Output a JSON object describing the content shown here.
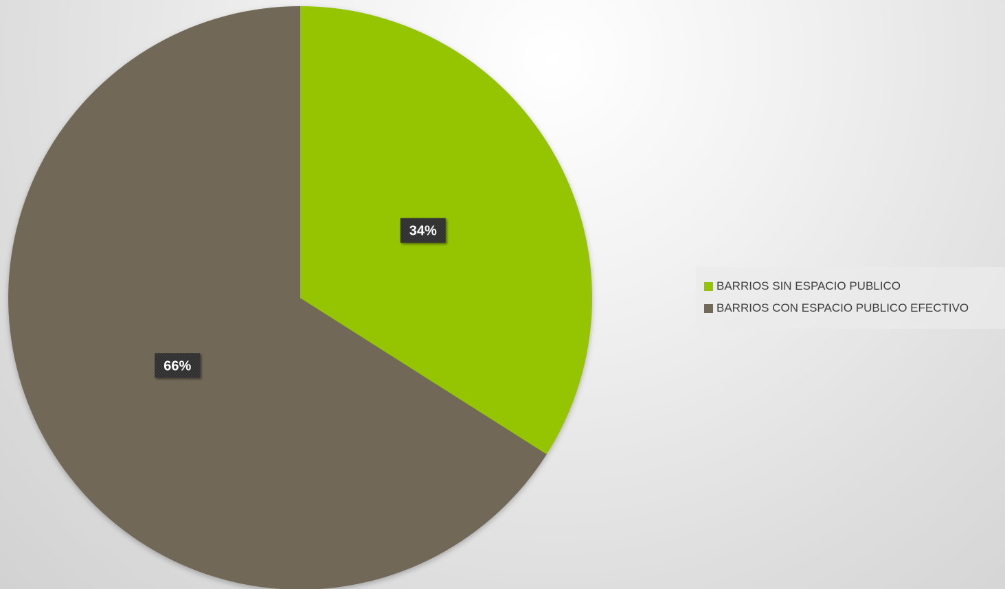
{
  "chart_data": {
    "type": "pie",
    "title": "",
    "labels": [
      "BARRIOS SIN ESPACIO PUBLICO",
      "BARRIOS CON ESPACIO PUBLICO EFECTIVO"
    ],
    "values": [
      34,
      66
    ],
    "value_labels": [
      "34%",
      "66%"
    ],
    "colors": [
      "#95c400",
      "#716858"
    ],
    "start_angle_deg": 0,
    "direction": "clockwise",
    "legend_position": "right"
  }
}
